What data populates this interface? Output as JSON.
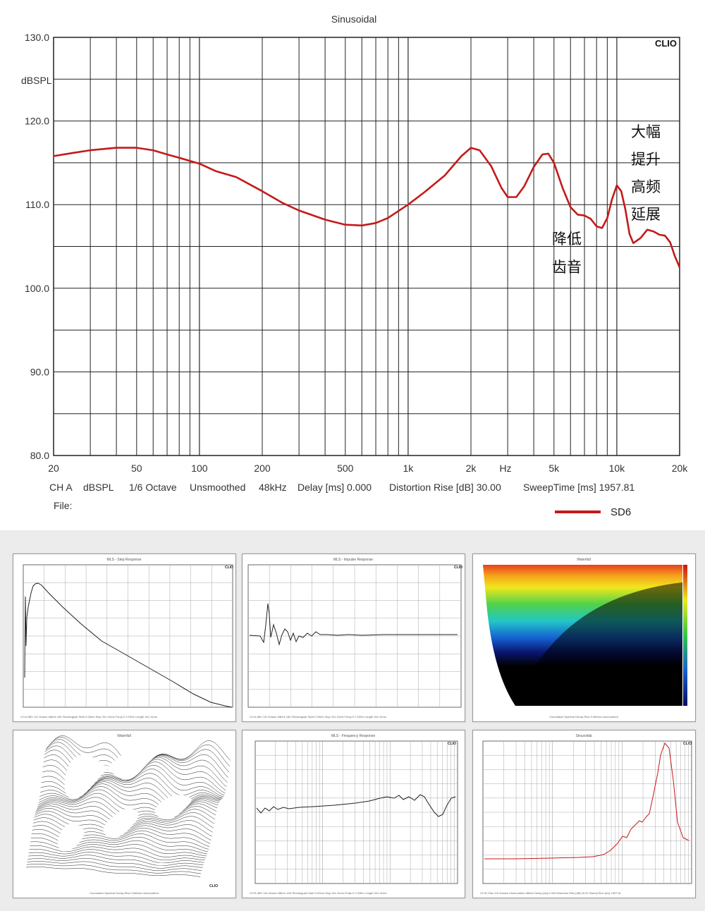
{
  "chart_data": [
    {
      "type": "line",
      "title": "Sinusoidal",
      "brand": "CLIO",
      "ylabel": "dBSPL",
      "xunit": "Hz",
      "xscale": "log",
      "xlim": [
        20,
        20000
      ],
      "ylim": [
        80,
        130
      ],
      "grid": true,
      "xticks": [
        {
          "v": 20,
          "label": "20"
        },
        {
          "v": 50,
          "label": "50"
        },
        {
          "v": 100,
          "label": "100"
        },
        {
          "v": 200,
          "label": "200"
        },
        {
          "v": 500,
          "label": "500"
        },
        {
          "v": 1000,
          "label": "1k"
        },
        {
          "v": 2000,
          "label": "2k"
        },
        {
          "v": 5000,
          "label": "5k"
        },
        {
          "v": 10000,
          "label": "10k"
        },
        {
          "v": 20000,
          "label": "20k"
        }
      ],
      "yticks": [
        {
          "v": 130,
          "label": "130.0"
        },
        {
          "v": 120,
          "label": "120.0"
        },
        {
          "v": 110,
          "label": "110.0"
        },
        {
          "v": 100,
          "label": "100.0"
        },
        {
          "v": 90,
          "label": "90.0"
        },
        {
          "v": 80,
          "label": "80.0"
        }
      ],
      "info": {
        "channel": "CH A",
        "units": "dBSPL",
        "smoothing": "1/6 Octave",
        "unsmoothed": "Unsmoothed",
        "rate": "48kHz",
        "delay": "Delay [ms] 0.000",
        "distortion": "Distortion Rise [dB] 30.00",
        "sweep": "SweepTime [ms] 1957.81",
        "file": "File:"
      },
      "series": [
        {
          "name": "SD6",
          "color": "#c41a1a",
          "points": [
            [
              20,
              115.8
            ],
            [
              25,
              116.2
            ],
            [
              30,
              116.5
            ],
            [
              40,
              116.8
            ],
            [
              50,
              116.8
            ],
            [
              60,
              116.5
            ],
            [
              70,
              116.0
            ],
            [
              80,
              115.6
            ],
            [
              100,
              114.9
            ],
            [
              120,
              114.0
            ],
            [
              150,
              113.3
            ],
            [
              200,
              111.6
            ],
            [
              250,
              110.2
            ],
            [
              300,
              109.3
            ],
            [
              400,
              108.2
            ],
            [
              500,
              107.6
            ],
            [
              600,
              107.5
            ],
            [
              700,
              107.8
            ],
            [
              800,
              108.4
            ],
            [
              1000,
              110.0
            ],
            [
              1200,
              111.5
            ],
            [
              1500,
              113.5
            ],
            [
              1800,
              115.8
            ],
            [
              2000,
              116.8
            ],
            [
              2200,
              116.5
            ],
            [
              2500,
              114.6
            ],
            [
              2800,
              112.0
            ],
            [
              3000,
              110.9
            ],
            [
              3300,
              110.9
            ],
            [
              3600,
              112.2
            ],
            [
              4000,
              114.5
            ],
            [
              4400,
              116.0
            ],
            [
              4700,
              116.1
            ],
            [
              5000,
              115.0
            ],
            [
              5500,
              112.0
            ],
            [
              6000,
              109.7
            ],
            [
              6500,
              108.8
            ],
            [
              7000,
              108.7
            ],
            [
              7500,
              108.3
            ],
            [
              8000,
              107.4
            ],
            [
              8500,
              107.2
            ],
            [
              9000,
              108.4
            ],
            [
              9500,
              110.7
            ],
            [
              10000,
              112.3
            ],
            [
              10500,
              111.6
            ],
            [
              11000,
              109.4
            ],
            [
              11500,
              106.5
            ],
            [
              12000,
              105.4
            ],
            [
              13000,
              106.0
            ],
            [
              14000,
              107.0
            ],
            [
              15000,
              106.8
            ],
            [
              16000,
              106.4
            ],
            [
              17000,
              106.3
            ],
            [
              18000,
              105.5
            ],
            [
              19000,
              103.8
            ],
            [
              20000,
              102.5
            ]
          ]
        }
      ],
      "annotations": [
        {
          "text": "大幅",
          "line": 1
        },
        {
          "text": "提升",
          "line": 2
        },
        {
          "text": "高频",
          "line": 3
        },
        {
          "text": "延展",
          "line": 4
        },
        {
          "text": "降低",
          "line": 1
        },
        {
          "text": "齿音",
          "line": 2
        }
      ]
    },
    {
      "type": "line",
      "title": "MLS - Step Response",
      "brand": "CLIO"
    },
    {
      "type": "line",
      "title": "MLS - Impulse Response",
      "brand": "CLIO"
    },
    {
      "type": "heatmap",
      "title": "Waterfall"
    },
    {
      "type": "area",
      "title": "Waterfall",
      "brand": "CLIO"
    },
    {
      "type": "line",
      "title": "MLS - Frequency Response",
      "brand": "CLIO"
    },
    {
      "type": "line",
      "title": "Sinusoidal",
      "brand": "CLIO"
    }
  ]
}
